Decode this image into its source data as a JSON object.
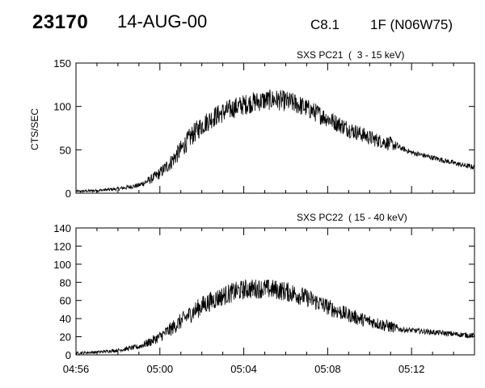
{
  "header": {
    "event_id": "23170",
    "date": "14-AUG-00",
    "flare_class": "C8.1",
    "location": "1F (N06W75)"
  },
  "chart_data": [
    {
      "type": "line",
      "title": "SXS PC21  (  3 - 15 keV)",
      "ylabel": "CTS/SEC",
      "xlabel": "",
      "ylim": [
        0,
        150
      ],
      "yticks": [
        0,
        50,
        100,
        150
      ],
      "xlim": [
        "04:56",
        "05:15"
      ],
      "grid": false,
      "series": [
        {
          "x": [
            "04:56",
            "04:57",
            "04:58",
            "04:59",
            "04:59:30",
            "05:00",
            "05:00:30",
            "05:01",
            "05:01:30",
            "05:02",
            "05:02:30",
            "05:03",
            "05:03:30",
            "05:04",
            "05:04:30",
            "05:05",
            "05:05:30",
            "05:06",
            "05:06:30",
            "05:07",
            "05:07:30",
            "05:08",
            "05:08:30",
            "05:09",
            "05:09:30",
            "05:10",
            "05:10:30",
            "05:11",
            "05:11:30",
            "05:12",
            "05:12:30",
            "05:13",
            "05:13:30",
            "05:14",
            "05:14:30",
            "05:15"
          ],
          "values": [
            2,
            3,
            5,
            9,
            15,
            23,
            35,
            50,
            66,
            78,
            87,
            93,
            98,
            102,
            105,
            107,
            108,
            106,
            103,
            98,
            92,
            86,
            80,
            74,
            69,
            64,
            60,
            57,
            52,
            47,
            44,
            41,
            38,
            35,
            32,
            30
          ],
          "noise": [
            1.5,
            1.5,
            2,
            3,
            5,
            7,
            9,
            11,
            12,
            12,
            12,
            12,
            12,
            12,
            12,
            12,
            12,
            12,
            12,
            11,
            11,
            10,
            10,
            10,
            9,
            9,
            8,
            8,
            3,
            3,
            3,
            3,
            3,
            3,
            3,
            3
          ]
        }
      ]
    },
    {
      "type": "line",
      "title": "SXS PC22  ( 15 - 40 keV)",
      "ylabel": "",
      "xlabel": "",
      "ylim": [
        0,
        140
      ],
      "yticks": [
        0,
        20,
        40,
        60,
        80,
        100,
        120,
        140
      ],
      "xlim": [
        "04:56",
        "05:15"
      ],
      "xticks": [
        "04:56",
        "05:00",
        "05:04",
        "05:08",
        "05:12"
      ],
      "grid": false,
      "series": [
        {
          "x": [
            "04:56",
            "04:57",
            "04:58",
            "04:59",
            "04:59:30",
            "05:00",
            "05:00:30",
            "05:01",
            "05:01:30",
            "05:02",
            "05:02:30",
            "05:03",
            "05:03:30",
            "05:04",
            "05:04:30",
            "05:05",
            "05:05:30",
            "05:06",
            "05:06:30",
            "05:07",
            "05:07:30",
            "05:08",
            "05:08:30",
            "05:09",
            "05:09:30",
            "05:10",
            "05:10:30",
            "05:11",
            "05:11:30",
            "05:12",
            "05:12:30",
            "05:13",
            "05:13:30",
            "05:14",
            "05:14:30",
            "05:15"
          ],
          "values": [
            2,
            3,
            5,
            9,
            14,
            20,
            28,
            37,
            46,
            54,
            60,
            65,
            69,
            72,
            73,
            73,
            72,
            70,
            67,
            63,
            58,
            53,
            48,
            44,
            40,
            37,
            34,
            31,
            28,
            27,
            26,
            25,
            24,
            23,
            22,
            21
          ],
          "noise": [
            1.5,
            1.5,
            2,
            3,
            5,
            6,
            8,
            9,
            10,
            11,
            11,
            11,
            11,
            11,
            11,
            11,
            11,
            11,
            11,
            10,
            10,
            9,
            9,
            8,
            8,
            7,
            7,
            7,
            3,
            3,
            3,
            3,
            3,
            3,
            3,
            3
          ]
        }
      ]
    }
  ]
}
